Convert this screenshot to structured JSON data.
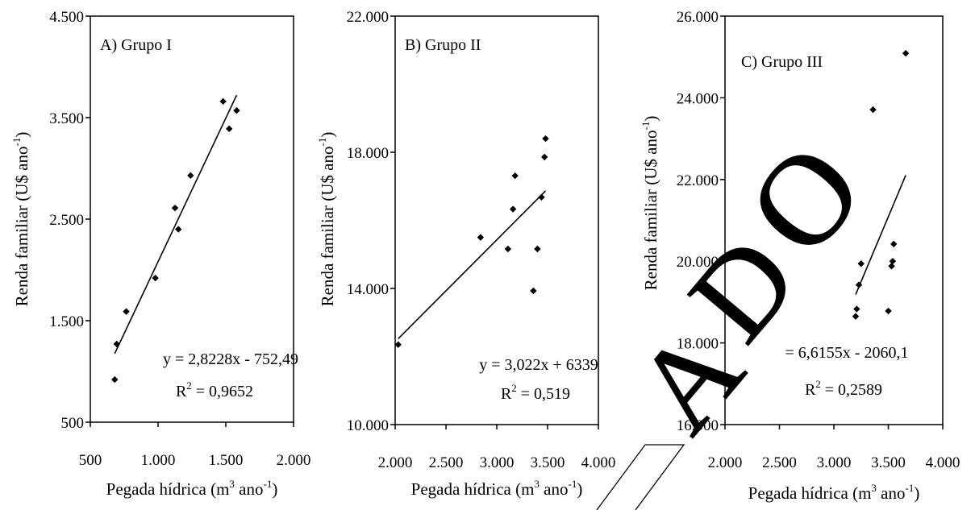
{
  "chart_data": [
    {
      "type": "scatter",
      "title": "A) Grupo I",
      "xlabel": "Pegada hídrica",
      "ylabel": "Renda familiar",
      "xlim": [
        500,
        2000
      ],
      "ylim": [
        500,
        4500
      ],
      "x_ticks": [
        "500",
        "1.000",
        "1.500",
        "2.000"
      ],
      "y_ticks": [
        "500",
        "1.500",
        "2.500",
        "3.500",
        "4.500"
      ],
      "x_tick_values": [
        500,
        1000,
        1500,
        2000
      ],
      "y_tick_values": [
        500,
        1500,
        2500,
        3500,
        4500
      ],
      "series": [
        {
          "x": [
            680,
            695,
            765,
            980,
            1125,
            1150,
            1240,
            1480,
            1525,
            1580
          ],
          "y": [
            920,
            1270,
            1590,
            1920,
            2610,
            2400,
            2930,
            3660,
            3390,
            3570
          ]
        }
      ],
      "trendline": {
        "x": [
          680,
          1580
        ]
      },
      "equation": "y = 2,8228x - 752,49",
      "r2": "= 0,9652",
      "grid": false
    },
    {
      "type": "scatter",
      "title": "B) Grupo II",
      "xlabel": "Pegada hídrica",
      "ylabel": "Renda familiar",
      "xlim": [
        2000,
        4000
      ],
      "ylim": [
        10000,
        22000
      ],
      "x_ticks": [
        "2.000",
        "2.500",
        "3.000",
        "3.500",
        "4.000"
      ],
      "y_ticks": [
        "10.000",
        "14.000",
        "18.000",
        "22.000"
      ],
      "x_tick_values": [
        2000,
        2500,
        3000,
        3500,
        4000
      ],
      "y_tick_values": [
        10000,
        14000,
        18000,
        22000
      ],
      "series": [
        {
          "x": [
            2030,
            2840,
            3110,
            3160,
            3180,
            3360,
            3400,
            3440,
            3470,
            3480
          ],
          "y": [
            12350,
            15500,
            15160,
            16330,
            17310,
            13930,
            15160,
            16680,
            17860,
            18400
          ]
        }
      ],
      "trendline": {
        "x": [
          2030,
          3480
        ]
      },
      "equation": "y = 3,022x + 6339",
      "r2": "= 0,519",
      "grid": false
    },
    {
      "type": "scatter",
      "title": "C) Grupo III",
      "xlabel": "Pegada hídrica",
      "ylabel": "Renda familiar",
      "xlim": [
        2000,
        4000
      ],
      "ylim": [
        16000,
        26000
      ],
      "x_ticks": [
        "2.000",
        "2.500",
        "3.000",
        "3.500",
        "4.000"
      ],
      "y_ticks": [
        "16.000",
        "18.000",
        "20.000",
        "22.000",
        "24.000",
        "26.000"
      ],
      "x_tick_values": [
        2000,
        2500,
        3000,
        3500,
        4000
      ],
      "y_tick_values": [
        16000,
        18000,
        20000,
        22000,
        24000,
        26000
      ],
      "series": [
        {
          "x": [
            3200,
            3210,
            3230,
            3250,
            3360,
            3500,
            3530,
            3540,
            3550,
            3660
          ],
          "y": [
            18650,
            18830,
            19420,
            19940,
            23710,
            18780,
            19880,
            20000,
            20420,
            25090
          ]
        }
      ],
      "trendline": {
        "x": [
          3200,
          3660
        ]
      },
      "equation": "= 6,6155x - 2060,1",
      "r2": "= 0,2589",
      "grid": false
    }
  ],
  "units": {
    "x_unit_prefix": "(m",
    "x_unit_exp": "3",
    "x_unit_mid": " ano",
    "x_unit_exp2": "-1",
    "x_unit_suffix": ")",
    "y_unit_prefix": "(U$ ano",
    "y_unit_exp": "-1",
    "y_unit_suffix": ")",
    "r_letter": "R",
    "r_exp": "2"
  },
  "watermark": {
    "letters": [
      "A",
      "D",
      "O"
    ],
    "color": "#000000"
  },
  "colors": {
    "marker": "#000000",
    "line": "#000000",
    "background": "#ffffff"
  }
}
